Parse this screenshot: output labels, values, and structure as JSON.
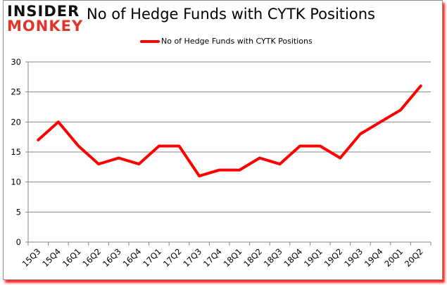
{
  "logo": {
    "line1": "INSIDER",
    "line2": "MONKEY"
  },
  "colors": {
    "series": "#ff0000",
    "grid": "#868686",
    "logo_red": "#e0352a",
    "frame_shadow": "#ff0000"
  },
  "chart_data": {
    "type": "line",
    "title": "No of Hedge Funds with CYTK Positions",
    "xlabel": "",
    "ylabel": "",
    "ylim": [
      0,
      30
    ],
    "yticks": [
      0,
      5,
      10,
      15,
      20,
      25,
      30
    ],
    "grid": true,
    "legend_position": "top",
    "categories": [
      "15Q3",
      "15Q4",
      "16Q1",
      "16Q2",
      "16Q3",
      "16Q4",
      "17Q1",
      "17Q2",
      "17Q3",
      "17Q4",
      "18Q1",
      "18Q2",
      "18Q3",
      "18Q4",
      "19Q1",
      "19Q2",
      "19Q3",
      "19Q4",
      "20Q1",
      "20Q2"
    ],
    "series": [
      {
        "name": "No of Hedge Funds with CYTK Positions",
        "color": "#ff0000",
        "values": [
          17,
          20,
          16,
          13,
          14,
          13,
          16,
          16,
          11,
          12,
          12,
          14,
          13,
          16,
          16,
          14,
          18,
          20,
          22,
          26
        ]
      }
    ]
  }
}
